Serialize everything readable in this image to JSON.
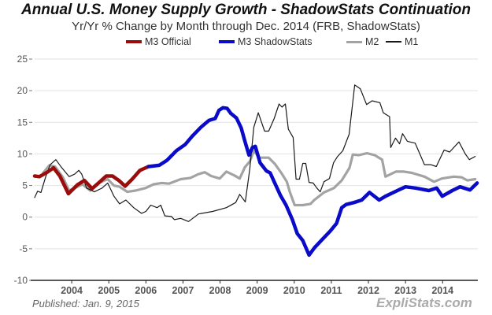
{
  "chart_data": {
    "type": "line",
    "title": "Annual U.S. Money Supply Growth - ShadowStats Continuation",
    "subtitle": "Yr/Yr % Change by Month through Dec. 2014  (FRB, ShadowStats)",
    "xlabel": "",
    "ylabel": "",
    "xlim": [
      2003.0,
      2014.95
    ],
    "ylim": [
      -10,
      25
    ],
    "yticks": [
      25,
      20,
      15,
      10,
      5,
      0,
      -5,
      -10
    ],
    "xticks": [
      {
        "value": 2004,
        "label": "2004"
      },
      {
        "value": 2005,
        "label": "2005"
      },
      {
        "value": 2006,
        "label": "2006"
      },
      {
        "value": 2007,
        "label": "2007"
      },
      {
        "value": 2008,
        "label": "2008"
      },
      {
        "value": 2009,
        "label": "2009"
      },
      {
        "value": 2010,
        "label": "2010"
      },
      {
        "value": 2011,
        "label": "2011"
      },
      {
        "value": 2012,
        "label": "2012"
      },
      {
        "value": 2013,
        "label": "2013"
      },
      {
        "value": 2014,
        "label": "2014"
      }
    ],
    "grid": true,
    "legend_position": "top-center",
    "series": [
      {
        "name": "M2",
        "color": "#a3a3a3",
        "points": [
          [
            2003.23,
            7.0
          ],
          [
            2003.4,
            8.2
          ],
          [
            2003.55,
            8.0
          ],
          [
            2003.76,
            6.3
          ],
          [
            2003.93,
            4.2
          ],
          [
            2004.08,
            4.6
          ],
          [
            2004.29,
            5.2
          ],
          [
            2004.5,
            4.2
          ],
          [
            2004.72,
            5.4
          ],
          [
            2004.97,
            6.0
          ],
          [
            2005.14,
            5.0
          ],
          [
            2005.29,
            4.8
          ],
          [
            2005.5,
            4.0
          ],
          [
            2005.72,
            4.2
          ],
          [
            2005.99,
            4.6
          ],
          [
            2006.21,
            5.2
          ],
          [
            2006.42,
            5.4
          ],
          [
            2006.62,
            5.3
          ],
          [
            2006.94,
            6.0
          ],
          [
            2007.2,
            6.2
          ],
          [
            2007.42,
            6.8
          ],
          [
            2007.59,
            7.1
          ],
          [
            2007.76,
            6.5
          ],
          [
            2007.99,
            6.1
          ],
          [
            2008.17,
            7.2
          ],
          [
            2008.38,
            6.6
          ],
          [
            2008.53,
            6.1
          ],
          [
            2008.67,
            7.9
          ],
          [
            2008.8,
            8.8
          ],
          [
            2008.91,
            10.5
          ],
          [
            2009.06,
            9.4
          ],
          [
            2009.31,
            9.4
          ],
          [
            2009.48,
            8.4
          ],
          [
            2009.65,
            7.0
          ],
          [
            2009.8,
            5.6
          ],
          [
            2009.88,
            4.0
          ],
          [
            2010.01,
            1.9
          ],
          [
            2010.23,
            1.9
          ],
          [
            2010.44,
            2.1
          ],
          [
            2010.54,
            2.7
          ],
          [
            2010.8,
            3.9
          ],
          [
            2011.07,
            4.6
          ],
          [
            2011.28,
            5.8
          ],
          [
            2011.49,
            7.8
          ],
          [
            2011.58,
            9.9
          ],
          [
            2011.74,
            9.8
          ],
          [
            2011.96,
            10.1
          ],
          [
            2012.17,
            9.8
          ],
          [
            2012.37,
            9.1
          ],
          [
            2012.46,
            6.4
          ],
          [
            2012.74,
            7.2
          ],
          [
            2012.96,
            7.2
          ],
          [
            2013.17,
            7.0
          ],
          [
            2013.51,
            6.4
          ],
          [
            2013.77,
            5.6
          ],
          [
            2013.98,
            6.1
          ],
          [
            2014.3,
            6.4
          ],
          [
            2014.51,
            6.3
          ],
          [
            2014.67,
            5.8
          ],
          [
            2014.88,
            6.0
          ]
        ]
      },
      {
        "name": "M1",
        "color": "#1a1a1a",
        "points": [
          [
            2003.0,
            3.1
          ],
          [
            2003.08,
            4.1
          ],
          [
            2003.17,
            3.9
          ],
          [
            2003.3,
            6.4
          ],
          [
            2003.42,
            8.3
          ],
          [
            2003.57,
            9.1
          ],
          [
            2003.72,
            7.9
          ],
          [
            2003.93,
            6.4
          ],
          [
            2004.08,
            6.8
          ],
          [
            2004.19,
            7.4
          ],
          [
            2004.27,
            6.8
          ],
          [
            2004.4,
            4.6
          ],
          [
            2004.61,
            4.0
          ],
          [
            2004.82,
            4.6
          ],
          [
            2004.97,
            5.4
          ],
          [
            2005.14,
            3.3
          ],
          [
            2005.29,
            2.1
          ],
          [
            2005.46,
            2.7
          ],
          [
            2005.67,
            1.5
          ],
          [
            2005.88,
            0.6
          ],
          [
            2006.0,
            0.9
          ],
          [
            2006.13,
            1.9
          ],
          [
            2006.3,
            1.5
          ],
          [
            2006.4,
            1.9
          ],
          [
            2006.51,
            0.2
          ],
          [
            2006.69,
            0.1
          ],
          [
            2006.77,
            -0.4
          ],
          [
            2006.94,
            -0.2
          ],
          [
            2007.15,
            -0.7
          ],
          [
            2007.42,
            0.5
          ],
          [
            2007.8,
            0.9
          ],
          [
            2008.17,
            1.5
          ],
          [
            2008.42,
            2.3
          ],
          [
            2008.53,
            3.6
          ],
          [
            2008.68,
            2.4
          ],
          [
            2008.8,
            7.6
          ],
          [
            2008.91,
            14.2
          ],
          [
            2009.03,
            16.5
          ],
          [
            2009.2,
            13.6
          ],
          [
            2009.31,
            13.6
          ],
          [
            2009.46,
            15.6
          ],
          [
            2009.59,
            17.9
          ],
          [
            2009.67,
            17.4
          ],
          [
            2009.76,
            17.9
          ],
          [
            2009.84,
            13.9
          ],
          [
            2009.97,
            12.6
          ],
          [
            2010.05,
            6.0
          ],
          [
            2010.14,
            6.0
          ],
          [
            2010.23,
            8.5
          ],
          [
            2010.31,
            8.5
          ],
          [
            2010.4,
            5.5
          ],
          [
            2010.51,
            5.4
          ],
          [
            2010.61,
            4.6
          ],
          [
            2010.7,
            4.0
          ],
          [
            2010.8,
            5.6
          ],
          [
            2010.95,
            6.1
          ],
          [
            2011.06,
            8.6
          ],
          [
            2011.17,
            9.6
          ],
          [
            2011.31,
            10.5
          ],
          [
            2011.48,
            13.1
          ],
          [
            2011.63,
            20.9
          ],
          [
            2011.78,
            20.3
          ],
          [
            2011.95,
            17.8
          ],
          [
            2012.1,
            18.4
          ],
          [
            2012.31,
            18.1
          ],
          [
            2012.4,
            16.5
          ],
          [
            2012.57,
            15.9
          ],
          [
            2012.6,
            11.0
          ],
          [
            2012.73,
            12.5
          ],
          [
            2012.84,
            11.6
          ],
          [
            2012.92,
            13.2
          ],
          [
            2013.05,
            12.0
          ],
          [
            2013.26,
            11.7
          ],
          [
            2013.51,
            8.3
          ],
          [
            2013.68,
            8.3
          ],
          [
            2013.83,
            8.0
          ],
          [
            2014.04,
            10.6
          ],
          [
            2014.19,
            10.3
          ],
          [
            2014.44,
            11.9
          ],
          [
            2014.61,
            10.0
          ],
          [
            2014.72,
            9.1
          ],
          [
            2014.88,
            9.6
          ]
        ]
      },
      {
        "name": "M3 Official",
        "color": "#9b0d0d",
        "points": [
          [
            2003.0,
            6.5
          ],
          [
            2003.13,
            6.4
          ],
          [
            2003.34,
            7.1
          ],
          [
            2003.51,
            7.8
          ],
          [
            2003.68,
            6.5
          ],
          [
            2003.91,
            3.7
          ],
          [
            2004.15,
            5.1
          ],
          [
            2004.34,
            5.8
          ],
          [
            2004.55,
            4.5
          ],
          [
            2004.76,
            5.6
          ],
          [
            2004.93,
            6.5
          ],
          [
            2005.1,
            6.5
          ],
          [
            2005.27,
            5.8
          ],
          [
            2005.44,
            4.9
          ],
          [
            2005.63,
            6.0
          ],
          [
            2005.84,
            7.4
          ],
          [
            2006.07,
            8.0
          ]
        ]
      },
      {
        "name": "M3 ShadowStats",
        "color": "#0a0ac9",
        "points": [
          [
            2006.07,
            8.0
          ],
          [
            2006.36,
            8.2
          ],
          [
            2006.57,
            9.0
          ],
          [
            2006.82,
            10.5
          ],
          [
            2007.06,
            11.5
          ],
          [
            2007.25,
            12.8
          ],
          [
            2007.48,
            14.2
          ],
          [
            2007.7,
            15.3
          ],
          [
            2007.87,
            15.6
          ],
          [
            2007.97,
            16.9
          ],
          [
            2008.08,
            17.3
          ],
          [
            2008.19,
            17.2
          ],
          [
            2008.29,
            16.4
          ],
          [
            2008.44,
            15.7
          ],
          [
            2008.57,
            14.1
          ],
          [
            2008.67,
            12.0
          ],
          [
            2008.78,
            9.8
          ],
          [
            2008.87,
            11.0
          ],
          [
            2008.95,
            11.2
          ],
          [
            2009.08,
            8.6
          ],
          [
            2009.25,
            7.3
          ],
          [
            2009.35,
            7.0
          ],
          [
            2009.46,
            5.6
          ],
          [
            2009.63,
            3.4
          ],
          [
            2009.78,
            1.9
          ],
          [
            2009.95,
            -0.4
          ],
          [
            2010.08,
            -2.6
          ],
          [
            2010.23,
            -3.7
          ],
          [
            2010.4,
            -6.0
          ],
          [
            2010.55,
            -4.8
          ],
          [
            2010.76,
            -3.5
          ],
          [
            2010.97,
            -2.2
          ],
          [
            2011.14,
            -1.0
          ],
          [
            2011.28,
            1.5
          ],
          [
            2011.4,
            2.0
          ],
          [
            2011.61,
            2.3
          ],
          [
            2011.82,
            2.7
          ],
          [
            2012.03,
            3.9
          ],
          [
            2012.29,
            2.7
          ],
          [
            2012.46,
            3.3
          ],
          [
            2012.78,
            4.2
          ],
          [
            2013.0,
            4.8
          ],
          [
            2013.27,
            4.6
          ],
          [
            2013.63,
            4.2
          ],
          [
            2013.84,
            4.6
          ],
          [
            2013.99,
            3.3
          ],
          [
            2014.26,
            4.2
          ],
          [
            2014.47,
            4.8
          ],
          [
            2014.74,
            4.3
          ],
          [
            2014.93,
            5.4
          ]
        ]
      }
    ],
    "legend": [
      {
        "name": "M3 Official",
        "color": "#9b0d0d"
      },
      {
        "name": "M3 ShadowStats",
        "color": "#0a0ac9"
      },
      {
        "name": "M2",
        "color": "#a3a3a3"
      },
      {
        "name": "M1",
        "color": "#1a1a1a"
      }
    ]
  },
  "footer": {
    "published": "Published: Jan. 9, 2015",
    "brand": "ExpliStats.com"
  }
}
